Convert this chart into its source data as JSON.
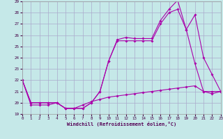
{
  "xlabel": "Windchill (Refroidissement éolien,°C)",
  "xlim": [
    0,
    23
  ],
  "ylim": [
    19,
    29
  ],
  "yticks": [
    19,
    20,
    21,
    22,
    23,
    24,
    25,
    26,
    27,
    28,
    29
  ],
  "xticks": [
    0,
    1,
    2,
    3,
    4,
    5,
    6,
    7,
    8,
    9,
    10,
    11,
    12,
    13,
    14,
    15,
    16,
    17,
    18,
    19,
    20,
    21,
    22,
    23
  ],
  "bg_color": "#c5e8e8",
  "grid_color": "#aaaacc",
  "line_color": "#aa00aa",
  "lines": [
    {
      "x": [
        0,
        1,
        2,
        3,
        4,
        5,
        6,
        7,
        8,
        9,
        10,
        11,
        12,
        13,
        14,
        15,
        16,
        17,
        18,
        19,
        20,
        21,
        22,
        23
      ],
      "y": [
        22,
        20,
        20,
        20,
        20,
        19.5,
        19.5,
        19.5,
        20.0,
        21.0,
        23.7,
        25.6,
        25.8,
        25.7,
        25.7,
        25.7,
        27.3,
        28.3,
        29.1,
        26.5,
        27.8,
        24.0,
        22.5,
        21.0
      ]
    },
    {
      "x": [
        0,
        1,
        2,
        3,
        4,
        5,
        6,
        7,
        8,
        9,
        10,
        11,
        12,
        13,
        14,
        15,
        16,
        17,
        18,
        19,
        20,
        21,
        22,
        23
      ],
      "y": [
        22,
        20,
        20,
        20,
        20,
        19.5,
        19.5,
        19.5,
        20.0,
        21.0,
        23.7,
        25.5,
        25.5,
        25.5,
        25.5,
        25.5,
        27.0,
        28.0,
        28.3,
        26.5,
        23.5,
        21.0,
        21.0,
        21.0
      ]
    },
    {
      "x": [
        0,
        1,
        2,
        3,
        4,
        5,
        6,
        7,
        8,
        9,
        10,
        11,
        12,
        13,
        14,
        15,
        16,
        17,
        18,
        19,
        20,
        21,
        22,
        23
      ],
      "y": [
        22,
        19.8,
        19.8,
        19.8,
        20.0,
        19.5,
        19.5,
        19.8,
        20.1,
        20.3,
        20.5,
        20.6,
        20.7,
        20.8,
        20.9,
        21.0,
        21.1,
        21.2,
        21.3,
        21.4,
        21.5,
        21.0,
        20.8,
        21.0
      ]
    }
  ]
}
